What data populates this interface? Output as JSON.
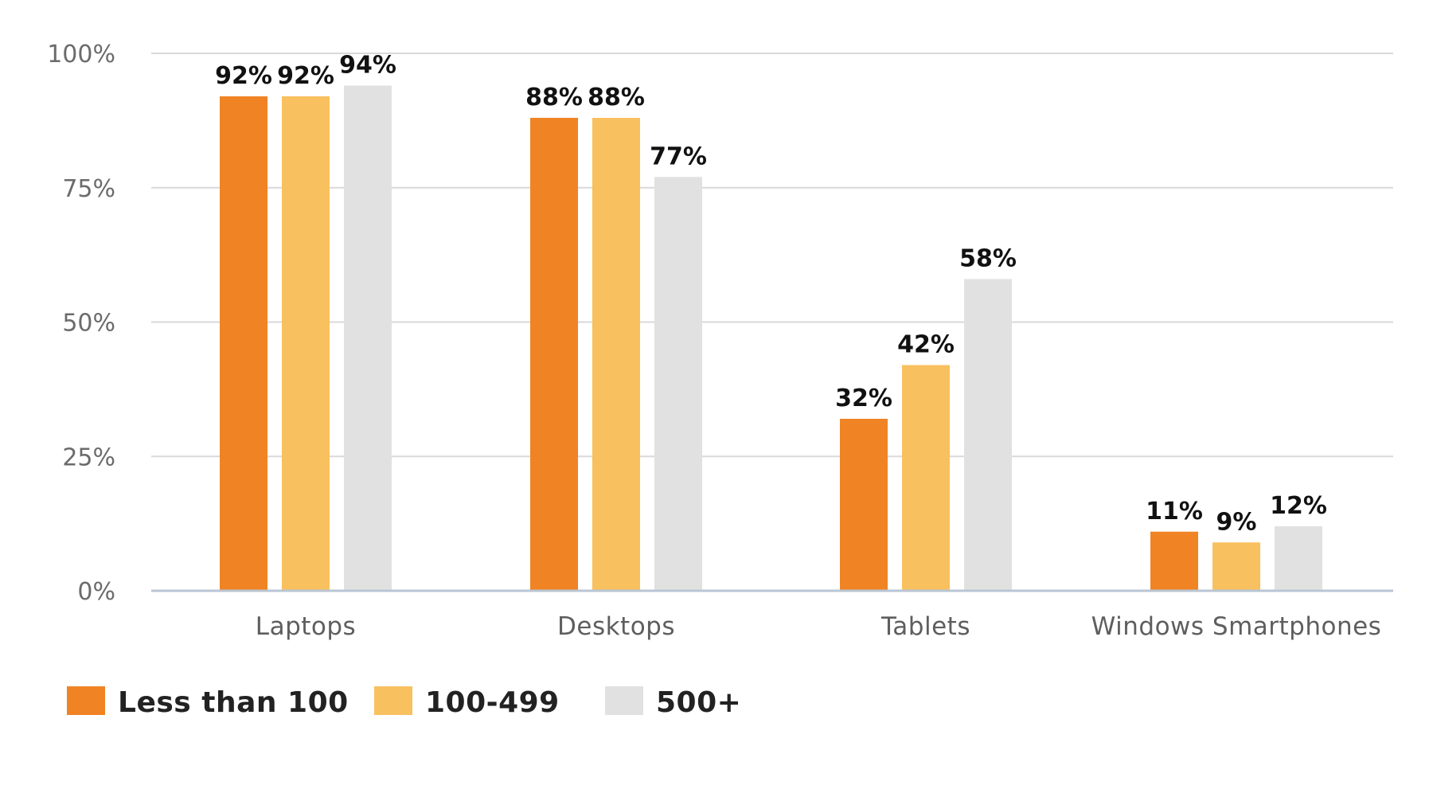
{
  "chart_data": {
    "type": "bar",
    "categories": [
      "Laptops",
      "Desktops",
      "Tablets",
      "Windows Smartphones"
    ],
    "series": [
      {
        "name": "Less than 100",
        "values": [
          92,
          88,
          32,
          11
        ],
        "color": "#f08324",
        "labels": [
          "92%",
          "88%",
          "32%",
          "11%"
        ]
      },
      {
        "name": "100-499",
        "values": [
          92,
          88,
          42,
          9
        ],
        "color": "#f9c05f",
        "labels": [
          "92%",
          "88%",
          "42%",
          "9%"
        ]
      },
      {
        "name": "500+",
        "values": [
          94,
          77,
          58,
          12
        ],
        "color": "#e1e1e1",
        "labels": [
          "94%",
          "77%",
          "58%",
          "12%"
        ]
      }
    ],
    "ylim": [
      0,
      100
    ],
    "yticks": [
      0,
      25,
      50,
      75,
      100
    ],
    "ytick_labels": [
      "0%",
      "25%",
      "50%",
      "75%",
      "100%"
    ],
    "grid": true,
    "legend": "bottom-left",
    "title": "",
    "xlabel": "",
    "ylabel": ""
  },
  "colors": {
    "grid": "#d9d9d9",
    "axis": "#b9c6d4"
  }
}
